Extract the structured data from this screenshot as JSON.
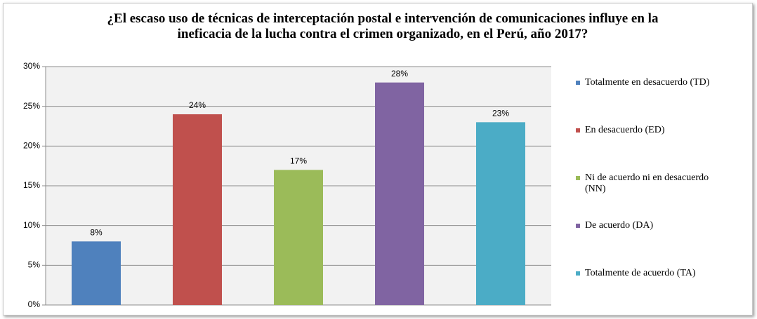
{
  "chart_data": {
    "type": "bar",
    "title": "¿El escaso uso de técnicas de interceptación postal e intervención de comunicaciones influye en la ineficacia de la lucha contra el crimen organizado, en el Perú, año 2017?",
    "categories": [
      null
    ],
    "series": [
      {
        "name": "Totalmente en desacuerdo (TD)",
        "color": "#4f81bd",
        "values": [
          8
        ],
        "value_labels": [
          "8%"
        ]
      },
      {
        "name": "En desacuerdo (ED)",
        "color": "#c0504d",
        "values": [
          24
        ],
        "value_labels": [
          "24%"
        ]
      },
      {
        "name": "Ni de acuerdo ni en desacuerdo (NN)",
        "color": "#9bbb59",
        "values": [
          17
        ],
        "value_labels": [
          "17%"
        ]
      },
      {
        "name": "De acuerdo (DA)",
        "color": "#8064a2",
        "values": [
          28
        ],
        "value_labels": [
          "28%"
        ]
      },
      {
        "name": "Totalmente de acuerdo (TA)",
        "color": "#4bacc6",
        "values": [
          23
        ],
        "value_labels": [
          "23%"
        ]
      }
    ],
    "ylim": [
      0,
      30
    ],
    "yticks": [
      {
        "value": 0,
        "label": "0%"
      },
      {
        "value": 5,
        "label": "5%"
      },
      {
        "value": 10,
        "label": "10%"
      },
      {
        "value": 15,
        "label": "15%"
      },
      {
        "value": 20,
        "label": "20%"
      },
      {
        "value": 25,
        "label": "25%"
      },
      {
        "value": 30,
        "label": "30%"
      }
    ],
    "grid": true,
    "legend": "right"
  }
}
